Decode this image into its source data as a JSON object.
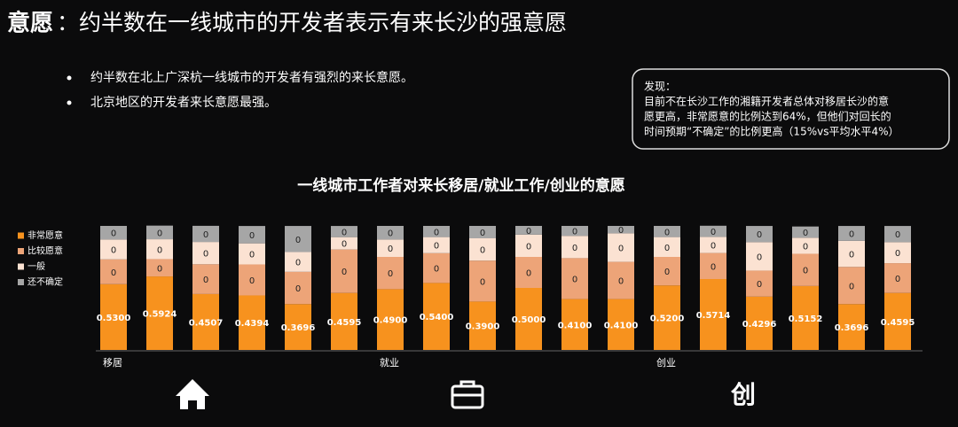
{
  "header": {
    "title_key": "意愿",
    "title_rest": "：约半数在一线城市的开发者表示有来长沙的强意愿"
  },
  "bullets": [
    "约半数在北上广深杭一线城市的开发者有强烈的来长意愿。",
    "北京地区的开发者来长意愿最强。"
  ],
  "note": {
    "heading": "发现：",
    "lines": [
      "目前不在长沙工作的湘籍开发者总体对移居长沙的意",
      "愿更高，非常愿意的比例达到64%，但他们对回长的",
      "时间预期“不确定”的比例更高（15%vs平均水平4%）"
    ]
  },
  "icon_text": "创",
  "chart_data": {
    "type": "stacked-bar",
    "title": "一线城市工作者对来长移居/就业工作/创业的意愿",
    "categories": [
      "移居",
      null,
      null,
      null,
      null,
      null,
      "就业",
      null,
      null,
      null,
      null,
      null,
      "创业",
      null,
      null,
      null,
      null,
      null
    ],
    "legend": "top-left",
    "series": [
      {
        "name": "非常愿意",
        "color": "#f7921e",
        "values": [
          0.53,
          0.5924,
          0.4507,
          0.4394,
          0.3696,
          0.4595,
          0.49,
          0.54,
          0.39,
          0.5,
          0.41,
          0.41,
          0.52,
          0.5714,
          0.4296,
          0.5152,
          0.3696,
          0.4595
        ],
        "value_labels": [
          "0.5300",
          "0.5924",
          "0.4507",
          "0.4394",
          "0.3696",
          "0.4595",
          "0.4900",
          "0.5400",
          "0.3900",
          "0.5000",
          "0.4100",
          "0.4100",
          "0.5200",
          "0.5714",
          "0.4296",
          "0.5152",
          "0.3696",
          "0.4595"
        ]
      },
      {
        "name": "比较愿意",
        "color": "#eda478",
        "values": [
          0.2,
          0.14,
          0.24,
          0.25,
          0.26,
          0.35,
          0.26,
          0.24,
          0.33,
          0.25,
          0.33,
          0.3,
          0.23,
          0.21,
          0.21,
          0.26,
          0.3,
          0.24
        ],
        "value_labels": [
          "0",
          "0",
          "0",
          "0",
          "0",
          "0",
          "0",
          "0",
          "0",
          "0",
          "0",
          "0",
          "0",
          "0",
          "0",
          "0",
          "0",
          "0"
        ]
      },
      {
        "name": "一般",
        "color": "#fbe2d2",
        "values": [
          0.16,
          0.16,
          0.18,
          0.17,
          0.16,
          0.1,
          0.14,
          0.13,
          0.18,
          0.18,
          0.18,
          0.23,
          0.16,
          0.13,
          0.23,
          0.13,
          0.21,
          0.17
        ],
        "value_labels": [
          "0",
          "0",
          "0",
          "0",
          "0",
          "0",
          "0",
          "0",
          "0",
          "0",
          "0",
          "0",
          "0",
          "0",
          "0",
          "0",
          "0",
          "0"
        ]
      },
      {
        "name": "还不确定",
        "color": "#a6a6a6",
        "values": [
          0.11,
          0.11,
          0.13,
          0.14,
          0.21,
          0.09,
          0.11,
          0.09,
          0.1,
          0.07,
          0.08,
          0.06,
          0.09,
          0.09,
          0.13,
          0.09,
          0.12,
          0.13
        ],
        "value_labels": [
          "0",
          "0",
          "0",
          "0",
          "0",
          "0",
          "0",
          "0",
          "0",
          "0",
          "0",
          "0",
          "0",
          "0",
          "0",
          "0",
          "0",
          "0"
        ]
      }
    ]
  }
}
